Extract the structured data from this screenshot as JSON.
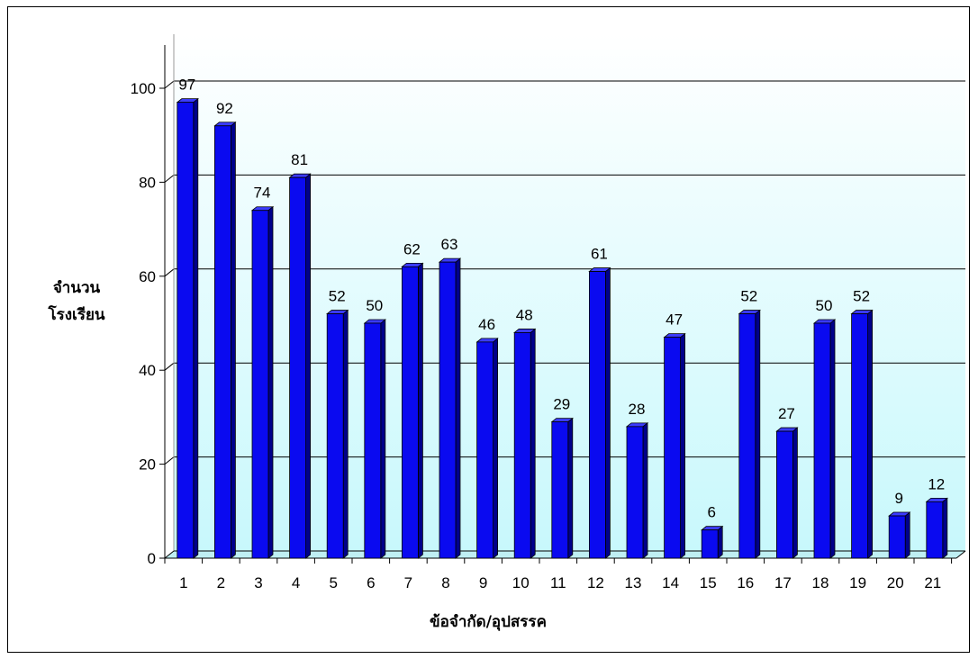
{
  "chart_data": {
    "type": "bar",
    "categories": [
      "1",
      "2",
      "3",
      "4",
      "5",
      "6",
      "7",
      "8",
      "9",
      "10",
      "11",
      "12",
      "13",
      "14",
      "15",
      "16",
      "17",
      "18",
      "19",
      "20",
      "21"
    ],
    "values": [
      97,
      92,
      74,
      81,
      52,
      50,
      62,
      63,
      46,
      48,
      29,
      61,
      28,
      47,
      6,
      52,
      27,
      50,
      52,
      9,
      12
    ],
    "xlabel": "ข้อจำกัด/อุปสรรค",
    "ylabel_lines": [
      "จำนวน",
      "โรงเรียน"
    ],
    "ylim": [
      0,
      100
    ],
    "yticks": [
      0,
      20,
      40,
      60,
      80,
      100
    ],
    "grid": true,
    "bar_style": "3d",
    "colors": {
      "bar_front": "#0a0af0",
      "bar_side": "#00008a",
      "bar_top": "#3b3bff",
      "bar_edge": "#000000",
      "wall_bottom": "#c8f8fc",
      "wall_top": "#ffffff",
      "floor": "#bfeff3",
      "gridline": "#000000"
    }
  }
}
